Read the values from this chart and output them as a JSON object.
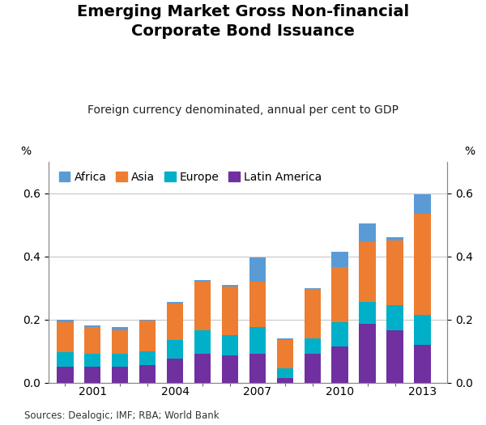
{
  "title": "Emerging Market Gross Non-financial\nCorporate Bond Issuance",
  "subtitle": "Foreign currency denominated, annual per cent to GDP",
  "ylabel_left": "%",
  "ylabel_right": "%",
  "source": "Sources: Dealogic; IMF; RBA; World Bank",
  "years": [
    2000,
    2001,
    2002,
    2003,
    2004,
    2005,
    2006,
    2007,
    2008,
    2009,
    2010,
    2011,
    2012,
    2013
  ],
  "africa": [
    0.01,
    0.005,
    0.01,
    0.005,
    0.005,
    0.005,
    0.005,
    0.075,
    0.005,
    0.005,
    0.05,
    0.06,
    0.01,
    0.06
  ],
  "asia": [
    0.095,
    0.085,
    0.075,
    0.095,
    0.115,
    0.155,
    0.155,
    0.145,
    0.09,
    0.155,
    0.175,
    0.19,
    0.205,
    0.32
  ],
  "europe": [
    0.045,
    0.04,
    0.04,
    0.045,
    0.06,
    0.075,
    0.065,
    0.085,
    0.03,
    0.05,
    0.075,
    0.07,
    0.08,
    0.095
  ],
  "latin_america": [
    0.05,
    0.05,
    0.05,
    0.055,
    0.075,
    0.09,
    0.085,
    0.09,
    0.015,
    0.09,
    0.115,
    0.185,
    0.165,
    0.12
  ],
  "color_africa": "#5B9BD5",
  "color_asia": "#ED7D31",
  "color_europe": "#00B0C8",
  "color_latin": "#7030A0",
  "ylim": [
    0,
    0.7
  ],
  "yticks": [
    0.0,
    0.2,
    0.4,
    0.6
  ],
  "bar_width": 0.6,
  "background_color": "#ffffff",
  "grid_color": "#c8c8c8",
  "title_fontsize": 14,
  "subtitle_fontsize": 10,
  "tick_fontsize": 10,
  "legend_fontsize": 10
}
